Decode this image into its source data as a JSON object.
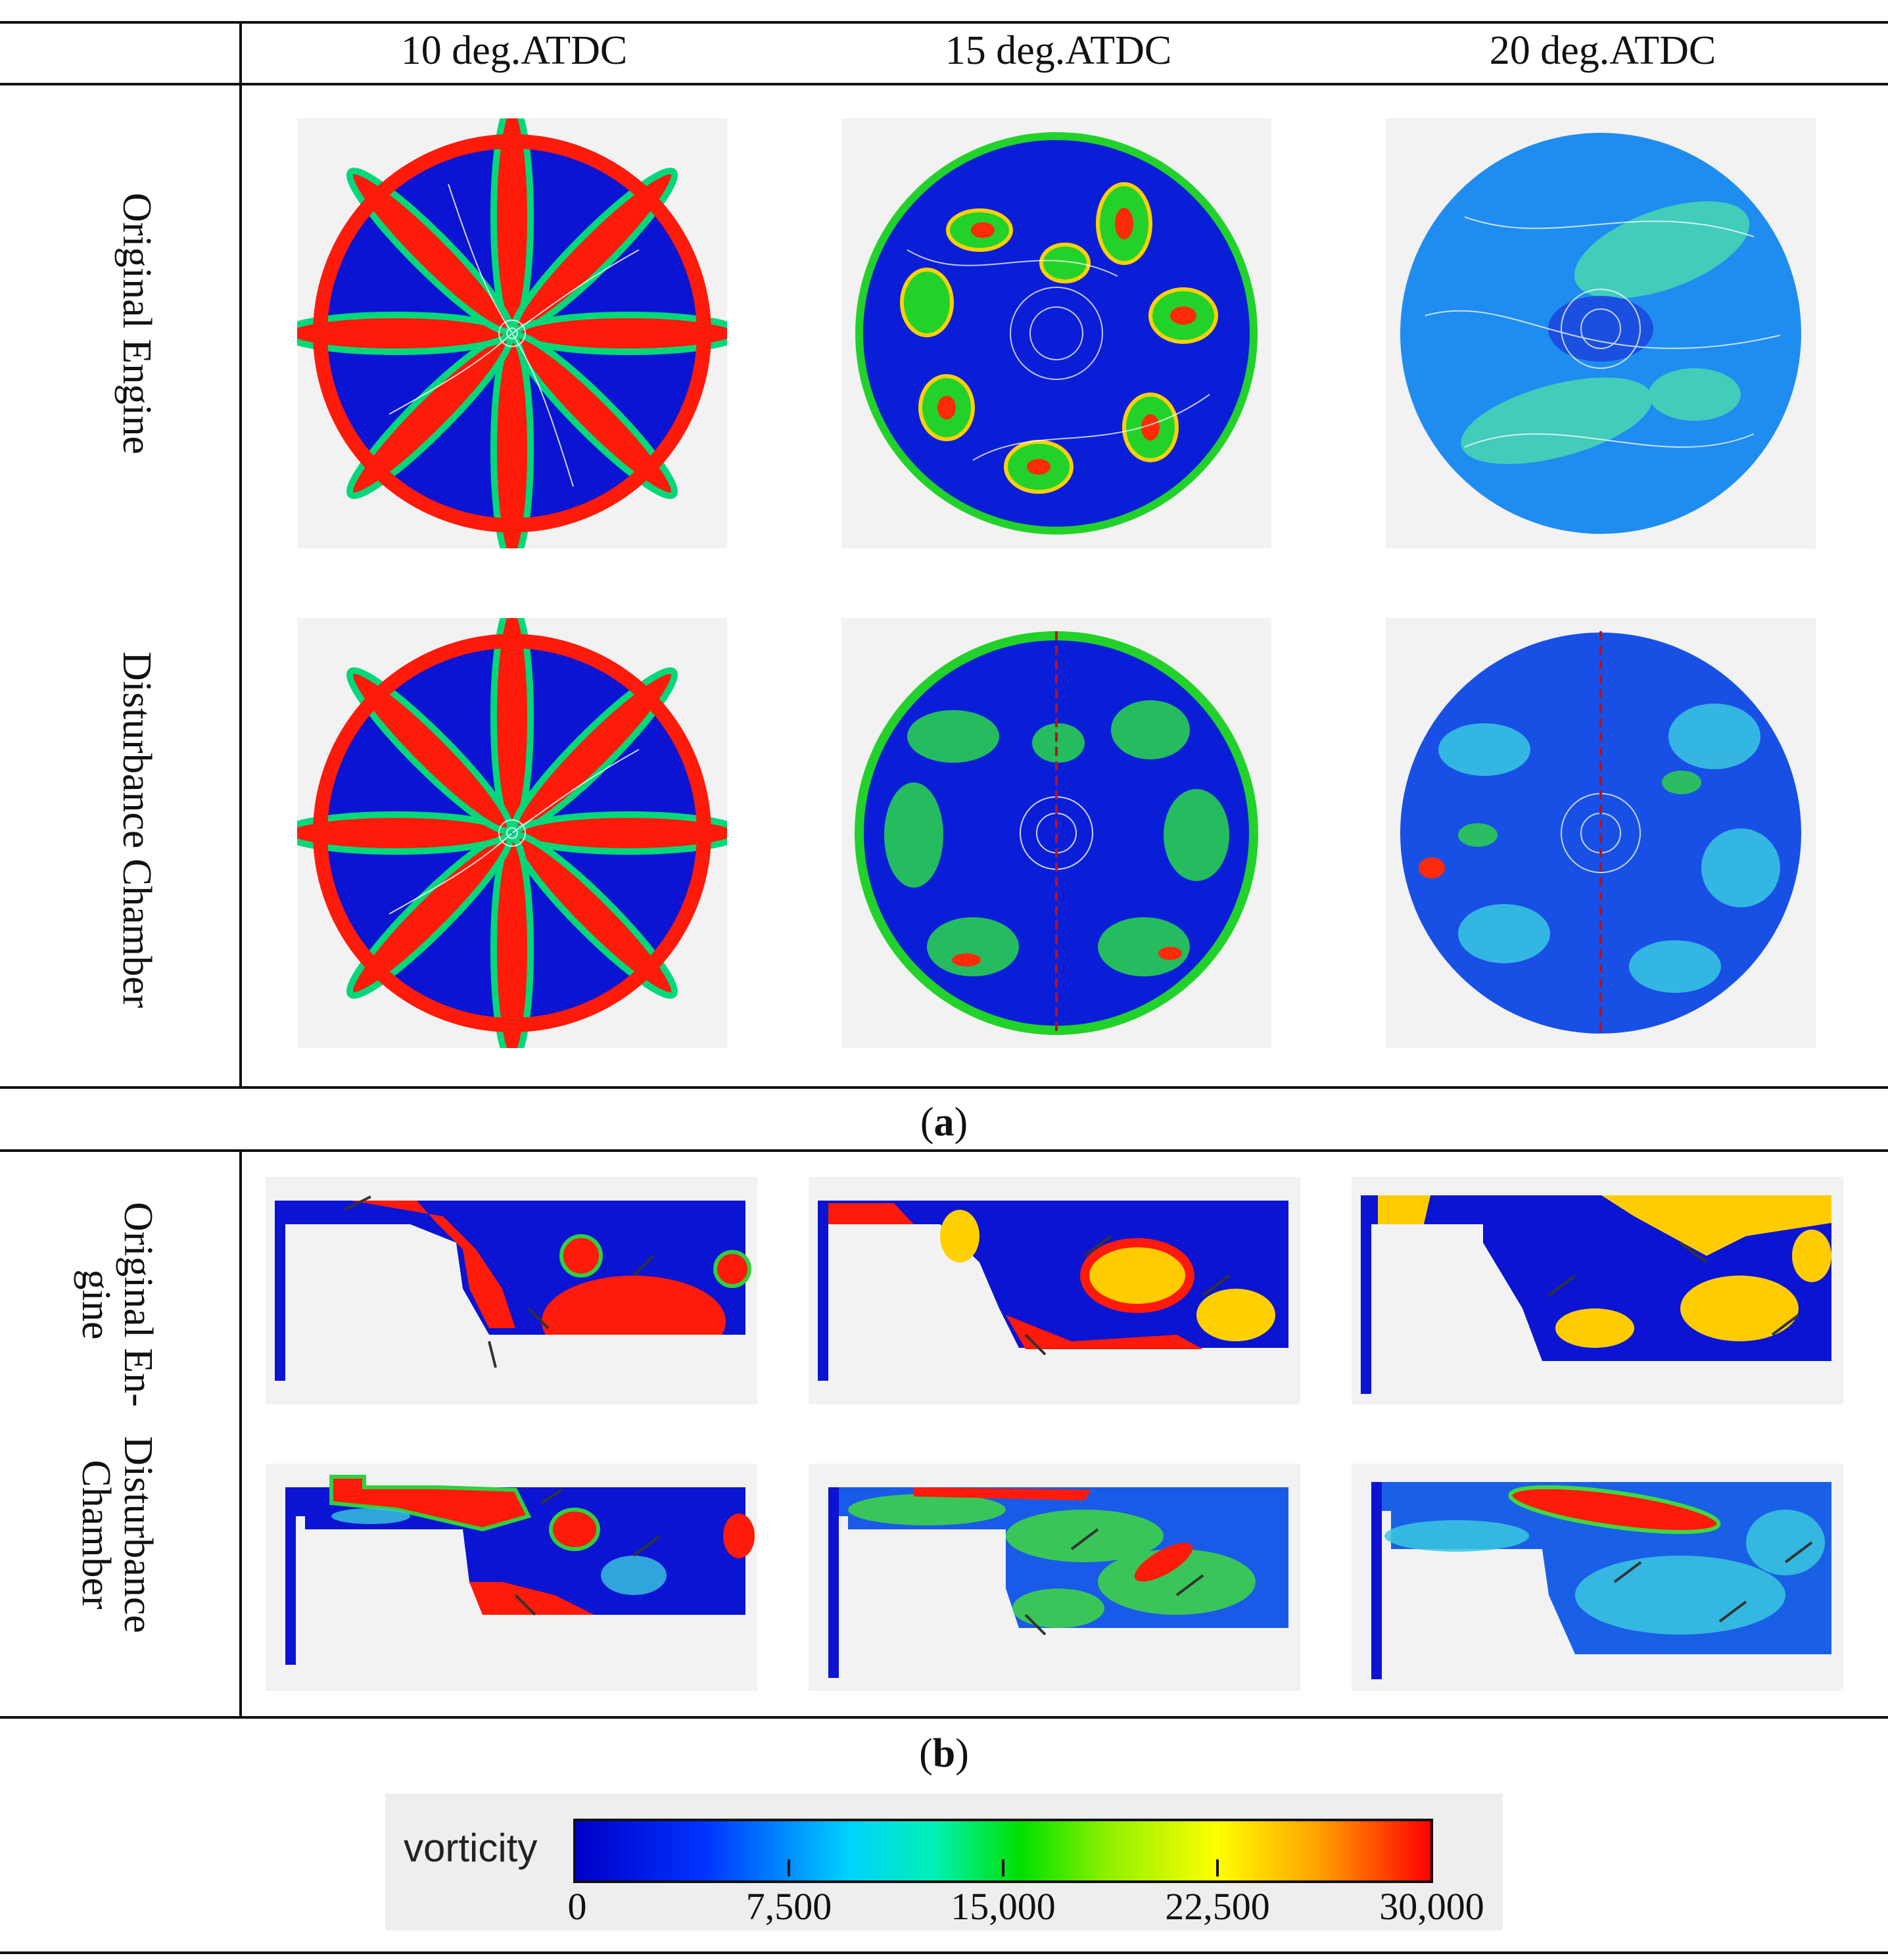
{
  "figure_a": {
    "columns": [
      "10 deg.ATDC",
      "15 deg.ATDC",
      "20 deg.ATDC"
    ],
    "rows": [
      "Original Engine",
      "Disturbance Chamber"
    ],
    "caption_letter": "a"
  },
  "figure_b": {
    "rows": [
      {
        "line1": "Original En-",
        "line2": "gine"
      },
      {
        "line1": "Disturbance",
        "line2": "Chamber"
      }
    ],
    "caption_letter": "b"
  },
  "legend": {
    "title": "vorticity",
    "ticks": [
      "0",
      "7,500",
      "15,000",
      "22,500",
      "30,000"
    ],
    "min": 0,
    "max": 30000
  },
  "colors": {
    "low": "#0000c8",
    "mid": "#00e000",
    "high": "#ff0000"
  }
}
